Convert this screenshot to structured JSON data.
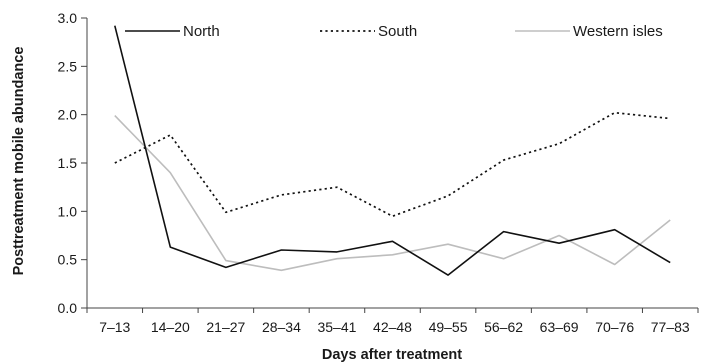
{
  "chart_data": {
    "type": "line",
    "title": "",
    "xlabel": "Days after treatment",
    "ylabel": "Posttreatment mobile abundance",
    "categories": [
      "7–13",
      "14–20",
      "21–27",
      "28–34",
      "35–41",
      "42–48",
      "49–55",
      "56–62",
      "63–69",
      "70–76",
      "77–83"
    ],
    "ylim": [
      0,
      3.0
    ],
    "yticks": [
      "0.0",
      "0.5",
      "1.0",
      "1.5",
      "2.0",
      "2.5",
      "3.0"
    ],
    "grid": false,
    "legend_position": "top",
    "series": [
      {
        "name": "North",
        "style": "solid",
        "color": "#111111",
        "values": [
          2.92,
          0.63,
          0.42,
          0.6,
          0.58,
          0.69,
          0.34,
          0.79,
          0.67,
          0.81,
          0.47
        ]
      },
      {
        "name": "South",
        "style": "dotted",
        "color": "#111111",
        "values": [
          1.5,
          1.79,
          0.99,
          1.17,
          1.25,
          0.95,
          1.16,
          1.53,
          1.7,
          2.02,
          1.96
        ]
      },
      {
        "name": "Western isles",
        "style": "solid",
        "color": "#bdbdbd",
        "values": [
          1.99,
          1.4,
          0.49,
          0.39,
          0.51,
          0.55,
          0.66,
          0.51,
          0.75,
          0.45,
          0.91
        ]
      }
    ]
  }
}
